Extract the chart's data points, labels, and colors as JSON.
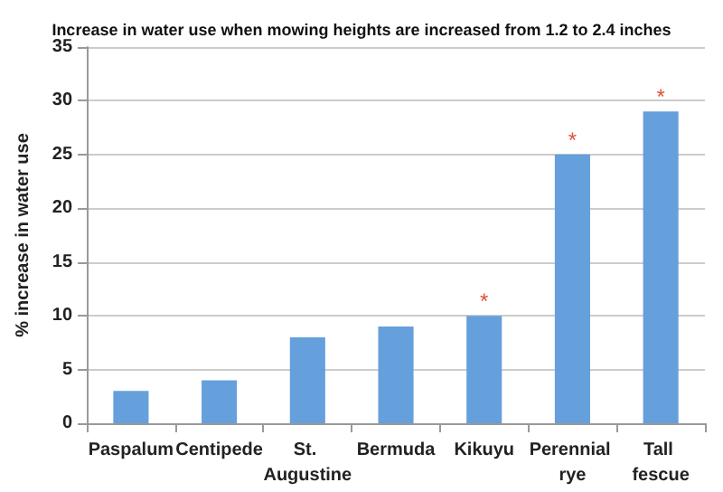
{
  "chart_data": {
    "type": "bar",
    "title": "Increase in water use when mowing heights are increased from 1.2 to 2.4 inches",
    "ylabel": "% increase in water use",
    "categories": [
      "Paspalum",
      "Centipede",
      "St. Augustine",
      "Bermuda",
      "Kikuyu",
      "Perennial rye",
      "Tall fescue"
    ],
    "values": [
      3,
      4,
      8,
      9,
      10,
      25,
      29
    ],
    "color": "#659fdc",
    "ylim": [
      0,
      35
    ],
    "yticks": [
      0,
      5,
      10,
      15,
      20,
      25,
      30,
      35
    ],
    "grid": "y",
    "annotations": [
      {
        "text": "*",
        "x": "Kikuyu",
        "y": 10
      },
      {
        "text": "*",
        "x": "Perennial rye",
        "y": 25
      },
      {
        "text": "*",
        "x": "Tall fescue",
        "y": 29
      }
    ]
  }
}
